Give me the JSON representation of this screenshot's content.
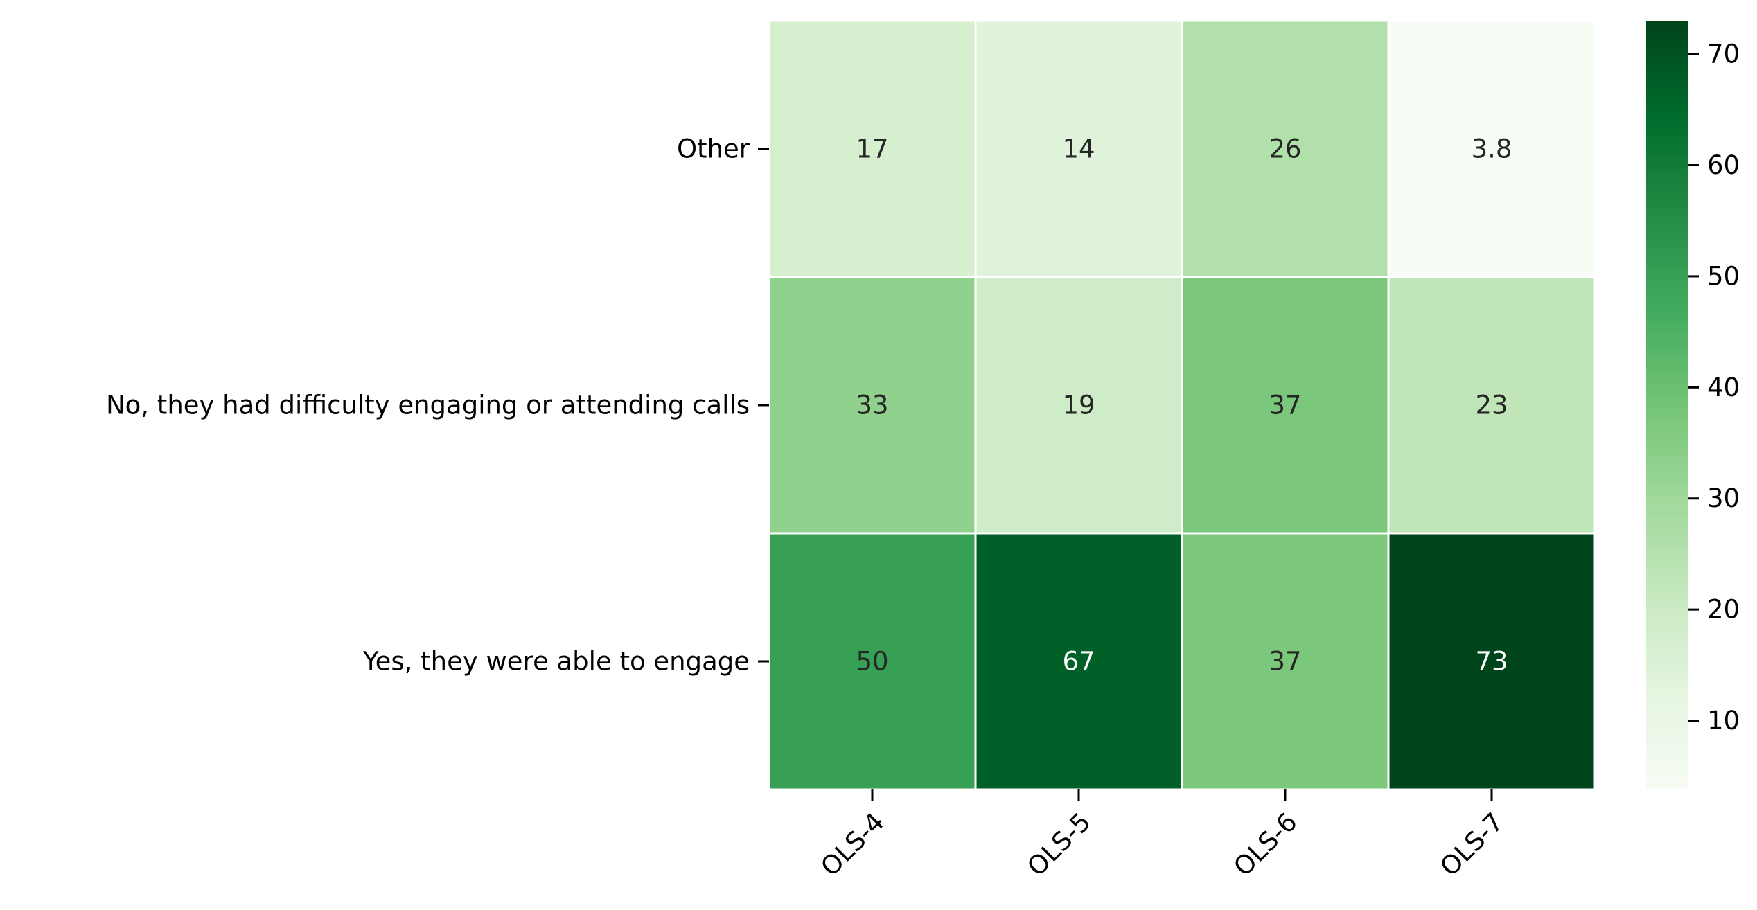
{
  "chart_data": {
    "type": "heatmap",
    "title": "",
    "xlabel": "",
    "ylabel": "",
    "x_categories": [
      "OLS-4",
      "OLS-5",
      "OLS-6",
      "OLS-7"
    ],
    "y_categories": [
      "Other",
      "No, they had difficulty engaging or attending calls",
      "Yes, they were able to engage"
    ],
    "values": [
      [
        17,
        14,
        26,
        3.8
      ],
      [
        33,
        19,
        37,
        23
      ],
      [
        50,
        67,
        37,
        73
      ]
    ],
    "cell_labels": [
      [
        "17",
        "14",
        "26",
        "3.8"
      ],
      [
        "33",
        "19",
        "37",
        "23"
      ],
      [
        "50",
        "67",
        "37",
        "73"
      ]
    ],
    "colormap": "Greens",
    "color_range": [
      3.8,
      73
    ],
    "colorbar_ticks": [
      10,
      20,
      30,
      40,
      50,
      60,
      70
    ],
    "grid_line_color": "#ffffff",
    "label_color_dark": "#262626",
    "label_color_light": "#ffffff"
  }
}
